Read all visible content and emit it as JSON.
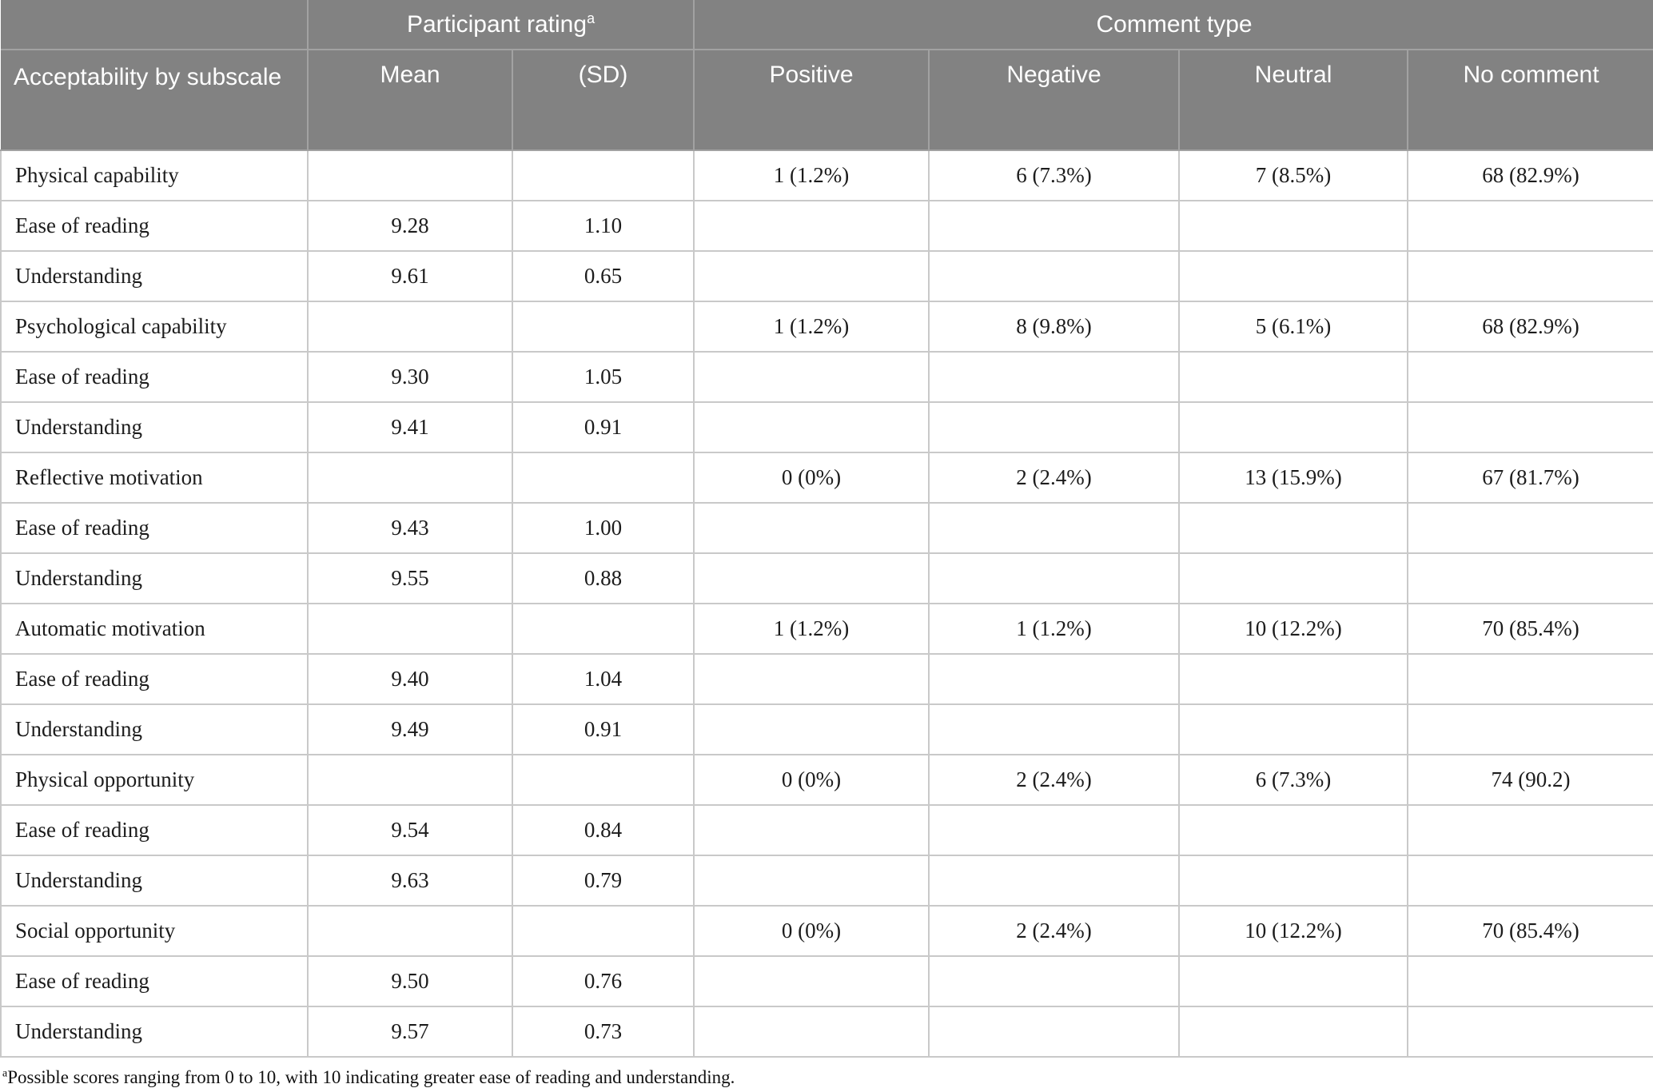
{
  "table": {
    "header": {
      "corner_label": "Acceptability by subscale",
      "group_participant_rating": "Participant rating",
      "group_participant_rating_sup": "a",
      "group_comment_type": "Comment type",
      "columns": [
        "Mean",
        "(SD)",
        "Positive",
        "Negative",
        "Neutral",
        "No comment"
      ]
    },
    "rows": [
      {
        "kind": "category",
        "label": "Physical capability",
        "mean": "",
        "sd": "",
        "positive": "1 (1.2%)",
        "negative": "6 (7.3%)",
        "neutral": "7 (8.5%)",
        "no_comment": "68 (82.9%)"
      },
      {
        "kind": "subscale",
        "label": "Ease of reading",
        "mean": "9.28",
        "sd": "1.10",
        "positive": "",
        "negative": "",
        "neutral": "",
        "no_comment": ""
      },
      {
        "kind": "subscale",
        "label": "Understanding",
        "mean": "9.61",
        "sd": "0.65",
        "positive": "",
        "negative": "",
        "neutral": "",
        "no_comment": ""
      },
      {
        "kind": "category",
        "label": "Psychological capability",
        "mean": "",
        "sd": "",
        "positive": "1 (1.2%)",
        "negative": "8 (9.8%)",
        "neutral": "5 (6.1%)",
        "no_comment": "68 (82.9%)"
      },
      {
        "kind": "subscale",
        "label": "Ease of reading",
        "mean": "9.30",
        "sd": "1.05",
        "positive": "",
        "negative": "",
        "neutral": "",
        "no_comment": ""
      },
      {
        "kind": "subscale",
        "label": "Understanding",
        "mean": "9.41",
        "sd": "0.91",
        "positive": "",
        "negative": "",
        "neutral": "",
        "no_comment": ""
      },
      {
        "kind": "category",
        "label": "Reflective motivation",
        "mean": "",
        "sd": "",
        "positive": "0 (0%)",
        "negative": "2 (2.4%)",
        "neutral": "13 (15.9%)",
        "no_comment": "67 (81.7%)"
      },
      {
        "kind": "subscale",
        "label": "Ease of reading",
        "mean": "9.43",
        "sd": "1.00",
        "positive": "",
        "negative": "",
        "neutral": "",
        "no_comment": ""
      },
      {
        "kind": "subscale",
        "label": "Understanding",
        "mean": "9.55",
        "sd": "0.88",
        "positive": "",
        "negative": "",
        "neutral": "",
        "no_comment": ""
      },
      {
        "kind": "category",
        "label": "Automatic motivation",
        "mean": "",
        "sd": "",
        "positive": "1 (1.2%)",
        "negative": "1 (1.2%)",
        "neutral": "10 (12.2%)",
        "no_comment": "70 (85.4%)"
      },
      {
        "kind": "subscale",
        "label": "Ease of reading",
        "mean": "9.40",
        "sd": "1.04",
        "positive": "",
        "negative": "",
        "neutral": "",
        "no_comment": ""
      },
      {
        "kind": "subscale",
        "label": "Understanding",
        "mean": "9.49",
        "sd": "0.91",
        "positive": "",
        "negative": "",
        "neutral": "",
        "no_comment": ""
      },
      {
        "kind": "category",
        "label": "Physical opportunity",
        "mean": "",
        "sd": "",
        "positive": "0 (0%)",
        "negative": "2 (2.4%)",
        "neutral": "6 (7.3%)",
        "no_comment": "74 (90.2)"
      },
      {
        "kind": "subscale",
        "label": "Ease of reading",
        "mean": "9.54",
        "sd": "0.84",
        "positive": "",
        "negative": "",
        "neutral": "",
        "no_comment": ""
      },
      {
        "kind": "subscale",
        "label": "Understanding",
        "mean": "9.63",
        "sd": "0.79",
        "positive": "",
        "negative": "",
        "neutral": "",
        "no_comment": ""
      },
      {
        "kind": "category",
        "label": "Social opportunity",
        "mean": "",
        "sd": "",
        "positive": "0 (0%)",
        "negative": "2 (2.4%)",
        "neutral": "10 (12.2%)",
        "no_comment": "70 (85.4%)"
      },
      {
        "kind": "subscale",
        "label": "Ease of reading",
        "mean": "9.50",
        "sd": "0.76",
        "positive": "",
        "negative": "",
        "neutral": "",
        "no_comment": ""
      },
      {
        "kind": "subscale",
        "label": "Understanding",
        "mean": "9.57",
        "sd": "0.73",
        "positive": "",
        "negative": "",
        "neutral": "",
        "no_comment": ""
      }
    ],
    "footnote": {
      "sup": "a",
      "text": "Possible scores ranging from 0 to 10, with 10 indicating greater ease of reading and understanding."
    }
  },
  "colors": {
    "header_bg": "#828282",
    "header_text": "#ffffff",
    "header_border": "#a2a2a2",
    "body_border": "#c9c9c9",
    "body_text": "#1c1c1c"
  }
}
